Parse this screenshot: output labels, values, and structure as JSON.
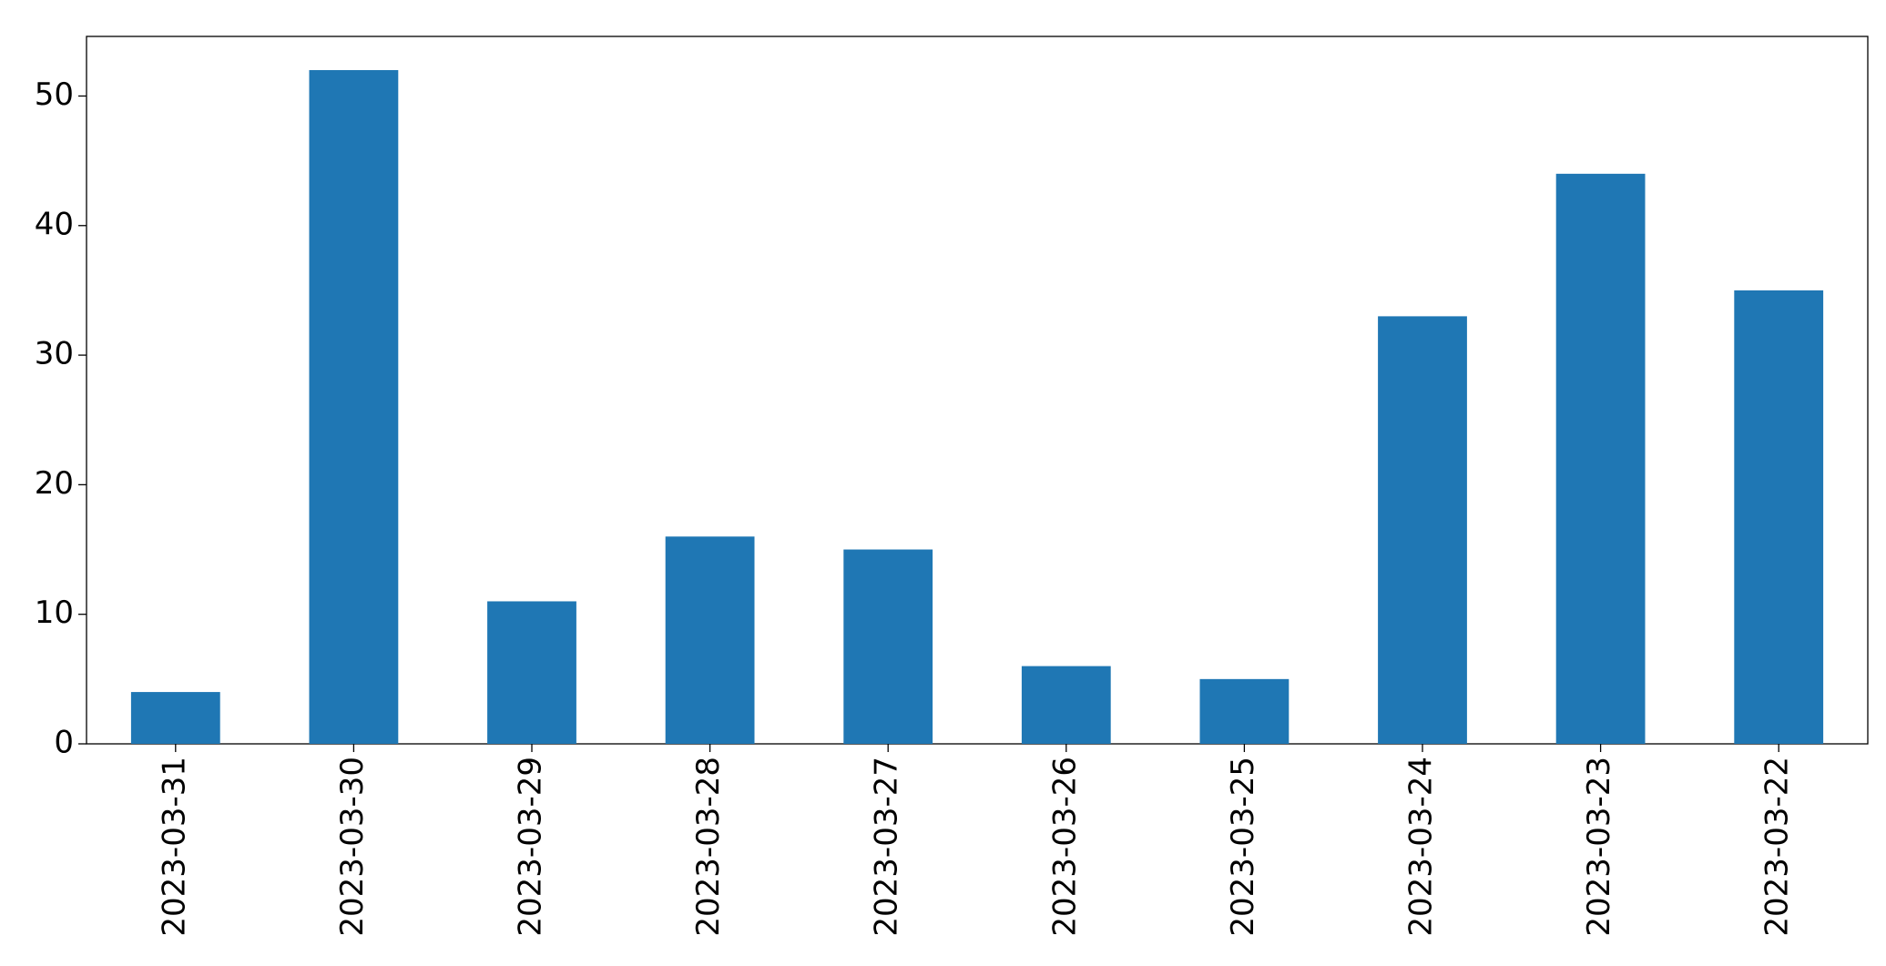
{
  "chart_data": {
    "type": "bar",
    "categories": [
      "2023-03-31",
      "2023-03-30",
      "2023-03-29",
      "2023-03-28",
      "2023-03-27",
      "2023-03-26",
      "2023-03-25",
      "2023-03-24",
      "2023-03-23",
      "2023-03-22"
    ],
    "values": [
      4,
      52,
      11,
      16,
      15,
      6,
      5,
      33,
      44,
      35
    ],
    "color": "#1f77b4",
    "ylim": [
      0,
      54.6
    ],
    "yticks": [
      0,
      10,
      20,
      30,
      40,
      50
    ],
    "grid": false
  }
}
